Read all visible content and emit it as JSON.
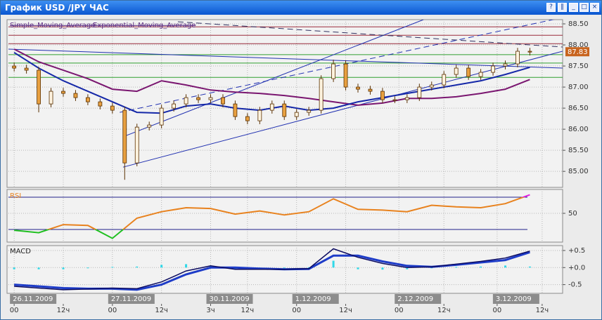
{
  "window": {
    "title": "График USD /JPY ЧАС"
  },
  "chart_data": [
    {
      "type": "candlestick",
      "x": [
        0,
        3,
        6,
        9,
        12,
        15,
        18,
        21,
        24,
        27,
        30,
        33,
        36,
        39,
        42,
        45,
        48,
        51,
        54,
        57,
        60,
        63,
        66,
        69,
        72,
        75,
        78,
        81,
        84,
        87,
        90,
        93,
        96,
        99,
        102,
        105,
        108,
        111,
        114,
        117,
        120,
        123,
        126
      ],
      "open": [
        87.5,
        87.45,
        87.4,
        86.6,
        86.9,
        86.85,
        86.75,
        86.65,
        86.55,
        86.45,
        85.2,
        86.05,
        86.1,
        86.5,
        86.6,
        86.75,
        86.7,
        86.75,
        86.6,
        86.3,
        86.2,
        86.45,
        86.6,
        86.3,
        86.4,
        86.45,
        87.2,
        87.55,
        87.0,
        86.95,
        86.9,
        86.7,
        86.7,
        86.75,
        87.0,
        87.05,
        87.3,
        87.45,
        87.25,
        87.35,
        87.5,
        87.55,
        87.85
      ],
      "high": [
        87.58,
        87.53,
        87.48,
        86.98,
        86.98,
        86.93,
        86.83,
        86.73,
        86.63,
        86.53,
        86.13,
        86.18,
        86.58,
        86.68,
        86.83,
        86.83,
        86.83,
        86.83,
        86.68,
        86.38,
        86.53,
        86.68,
        86.68,
        86.48,
        86.53,
        87.28,
        87.65,
        87.63,
        87.08,
        87.03,
        86.98,
        86.78,
        86.83,
        87.08,
        87.13,
        87.38,
        87.53,
        87.53,
        87.43,
        87.58,
        87.63,
        87.93,
        87.93
      ],
      "low": [
        87.37,
        87.32,
        86.4,
        86.52,
        86.77,
        86.67,
        86.57,
        86.47,
        86.37,
        84.8,
        85.12,
        85.97,
        86.02,
        86.42,
        86.52,
        86.62,
        86.62,
        86.52,
        86.22,
        86.12,
        86.12,
        86.37,
        86.22,
        86.22,
        86.32,
        86.37,
        87.12,
        86.92,
        86.87,
        86.82,
        86.62,
        86.62,
        86.62,
        86.67,
        86.92,
        86.97,
        87.22,
        87.17,
        87.17,
        87.27,
        87.42,
        87.47,
        87.75
      ],
      "close": [
        87.45,
        87.4,
        86.6,
        86.9,
        86.85,
        86.75,
        86.65,
        86.55,
        86.45,
        85.2,
        86.05,
        86.1,
        86.5,
        86.6,
        86.75,
        86.7,
        86.75,
        86.6,
        86.3,
        86.2,
        86.45,
        86.6,
        86.3,
        86.4,
        86.45,
        87.2,
        87.55,
        87.0,
        86.95,
        86.9,
        86.7,
        86.7,
        86.75,
        87.0,
        87.05,
        87.3,
        87.45,
        87.25,
        87.35,
        87.5,
        87.55,
        87.85,
        87.83
      ],
      "color": "#e8a040",
      "edge_color": "#5a3000",
      "xlim": [
        -1.4,
        134
      ],
      "ylim": [
        84.62,
        88.6
      ],
      "yticks": [
        {
          "value": 85,
          "label": "85.00"
        },
        {
          "value": 85.5,
          "label": "85.50"
        },
        {
          "value": 86,
          "label": "86.00"
        },
        {
          "value": 86.5,
          "label": "86.50"
        },
        {
          "value": 87,
          "label": "87.00"
        },
        {
          "value": 87.5,
          "label": "87.50"
        },
        {
          "value": 88,
          "label": "88.00"
        },
        {
          "value": 88.5,
          "label": "88.50"
        }
      ],
      "grid": true,
      "overlays": [
        {
          "name": "Simple_Moving_Average",
          "color": "#7a1670",
          "x": [
            0,
            6,
            12,
            18,
            24,
            30,
            36,
            42,
            48,
            54,
            60,
            66,
            72,
            78,
            84,
            90,
            96,
            102,
            108,
            114,
            120,
            126
          ],
          "values": [
            87.9,
            87.6,
            87.4,
            87.2,
            86.95,
            86.9,
            87.15,
            87.05,
            86.93,
            86.88,
            86.85,
            86.8,
            86.73,
            86.65,
            86.57,
            86.62,
            86.73,
            86.73,
            86.77,
            86.85,
            86.95,
            87.18
          ]
        },
        {
          "name": "Exponential_Moving_Average",
          "color": "#1528a8",
          "x": [
            0,
            6,
            12,
            18,
            24,
            30,
            36,
            42,
            48,
            54,
            60,
            66,
            72,
            78,
            84,
            90,
            96,
            102,
            108,
            114,
            120,
            126
          ],
          "values": [
            87.82,
            87.45,
            87.15,
            86.9,
            86.65,
            86.4,
            86.38,
            86.55,
            86.6,
            86.5,
            86.45,
            86.55,
            86.45,
            86.5,
            86.65,
            86.75,
            86.85,
            86.95,
            87.05,
            87.15,
            87.3,
            87.47
          ]
        }
      ],
      "levels": [
        {
          "value": 88.43,
          "color": "#9a2a3a"
        },
        {
          "value": 88.23,
          "color": "#9a2a3a"
        },
        {
          "value": 88.03,
          "color": "#9a2a3a"
        },
        {
          "value": 87.77,
          "color": "#30a030"
        },
        {
          "value": 87.57,
          "color": "#30a030"
        },
        {
          "value": 87.23,
          "color": "#30a030"
        }
      ],
      "trendlines": [
        {
          "x": [
            26.6,
            100
          ],
          "values": [
            85.82,
            88.6
          ],
          "color": "#2030b0",
          "dashed": false
        },
        {
          "x": [
            26.6,
            134
          ],
          "values": [
            85.1,
            87.85
          ],
          "color": "#2030b0",
          "dashed": false
        },
        {
          "x": [
            25.8,
            134
          ],
          "values": [
            86.4,
            88.65
          ],
          "color": "#2030b0",
          "dashed": true
        },
        {
          "x": [
            -1.4,
            134
          ],
          "values": [
            87.9,
            87.45
          ],
          "color": "#2030b0",
          "dashed": false
        },
        {
          "x": [
            40,
            134
          ],
          "values": [
            88.55,
            87.95
          ],
          "color": "#303060",
          "dashed": true
        }
      ]
    },
    {
      "type": "line",
      "title": "RSI",
      "x": [
        0,
        6,
        12,
        18,
        24,
        30,
        36,
        42,
        48,
        54,
        60,
        66,
        72,
        78,
        84,
        90,
        96,
        102,
        108,
        114,
        120,
        126
      ],
      "values": [
        29,
        26,
        36,
        35,
        19,
        44,
        52,
        57,
        56,
        49,
        53,
        48,
        52,
        68,
        55,
        54,
        52,
        60,
        58,
        57,
        62,
        73
      ],
      "color": "#e8821e",
      "overbought_color": "#e020e0",
      "oversold_color": "#20c020",
      "levels": [
        30,
        70
      ],
      "level_color": "#20208a",
      "xlim": [
        -1.4,
        134
      ],
      "ylim": [
        14.3,
        79.6
      ],
      "yticks": [
        50
      ],
      "grid": true
    },
    {
      "type": "macd",
      "title": "MACD",
      "x": [
        0,
        6,
        12,
        18,
        24,
        30,
        36,
        42,
        48,
        54,
        60,
        66,
        72,
        78,
        84,
        90,
        96,
        102,
        108,
        114,
        120,
        126
      ],
      "macd": [
        -0.55,
        -0.6,
        -0.65,
        -0.63,
        -0.6,
        -0.62,
        -0.42,
        -0.1,
        0.05,
        -0.05,
        -0.05,
        -0.05,
        -0.03,
        0.55,
        0.3,
        0.12,
        0.0,
        0.02,
        0.1,
        0.18,
        0.28,
        0.48
      ],
      "signal": [
        -0.5,
        -0.55,
        -0.6,
        -0.62,
        -0.62,
        -0.65,
        -0.5,
        -0.2,
        0.0,
        0.0,
        -0.03,
        -0.05,
        -0.04,
        0.35,
        0.35,
        0.18,
        0.05,
        0.02,
        0.08,
        0.15,
        0.22,
        0.45
      ],
      "histogram": [
        -0.05,
        -0.05,
        -0.05,
        -0.01,
        0.02,
        0.03,
        0.08,
        0.1,
        0.05,
        -0.05,
        -0.02,
        0.0,
        0.01,
        0.2,
        -0.05,
        -0.06,
        -0.05,
        0.0,
        0.02,
        0.03,
        0.06,
        0.03
      ],
      "macd_color": "#0a0a60",
      "signal_color": "#1e3cc8",
      "histogram_color": "#30d8e8",
      "xlim": [
        -1.4,
        134
      ],
      "ylim": [
        -0.755,
        0.643
      ],
      "yticks": [
        {
          "value": 0.5,
          "label": "+0.5"
        },
        {
          "value": 0,
          "label": "+0.0"
        },
        {
          "value": -0.5,
          "label": "-0.5"
        }
      ],
      "grid": true,
      "xticks": [
        {
          "value": 0,
          "label": "00"
        },
        {
          "value": 12,
          "label": "12ч"
        },
        {
          "value": 24,
          "label": "00"
        },
        {
          "value": 36,
          "label": "12ч"
        },
        {
          "value": 48,
          "label": "3ч"
        },
        {
          "value": 57,
          "label": "12ч"
        },
        {
          "value": 69,
          "label": "00"
        },
        {
          "value": 81,
          "label": "12ч"
        },
        {
          "value": 94,
          "label": "00"
        },
        {
          "value": 105,
          "label": "12ч"
        },
        {
          "value": 118,
          "label": "00"
        },
        {
          "value": 129,
          "label": "12ч"
        }
      ],
      "date_labels": [
        {
          "value": 0,
          "label": "26.11.2009"
        },
        {
          "value": 24,
          "label": "27.11.2009"
        },
        {
          "value": 48,
          "label": "30.11.2009"
        },
        {
          "value": 69,
          "label": "1.12.2009"
        },
        {
          "value": 94,
          "label": "2.12.2009"
        },
        {
          "value": 118,
          "label": "3.12.2009"
        }
      ]
    }
  ]
}
